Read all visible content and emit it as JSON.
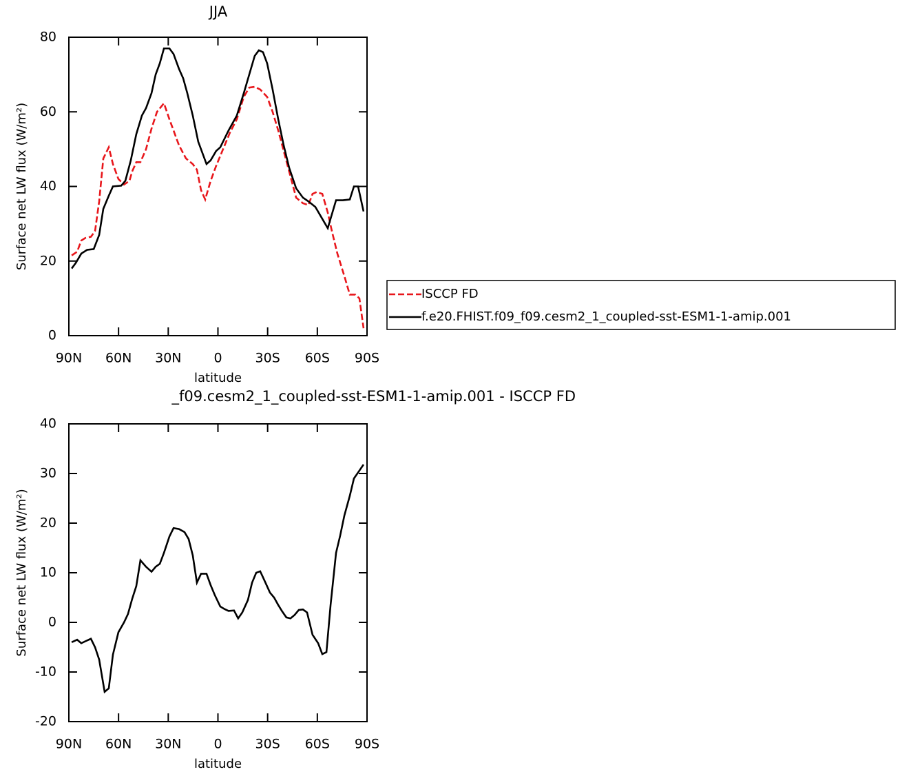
{
  "chart_data": [
    {
      "type": "line",
      "title": "JJA",
      "xlabel": "latitude",
      "ylabel": "Surface net LW flux (W/m²)",
      "xlim": [
        90,
        -90
      ],
      "xticks": [
        {
          "value": 90,
          "label": "90N"
        },
        {
          "value": 60,
          "label": "60N"
        },
        {
          "value": 30,
          "label": "30N"
        },
        0,
        {
          "value": -30,
          "label": "30S"
        },
        {
          "value": -60,
          "label": "60S"
        },
        {
          "value": -90,
          "label": "90S"
        }
      ],
      "ylim": [
        0,
        80
      ],
      "yticks": [
        0,
        20,
        40,
        60,
        80
      ],
      "legend": "right",
      "series": [
        {
          "name": "ISCCP FD",
          "color": "#e8161b",
          "style": "dashed",
          "x": [
            88.3,
            85,
            82.5,
            80,
            76.7,
            74.2,
            71.7,
            69.2,
            65.9,
            63.4,
            60.1,
            56.7,
            53.4,
            51.8,
            49.3,
            46.8,
            43.4,
            40.1,
            36.8,
            32.6,
            29.3,
            26.8,
            23.5,
            19.3,
            15.2,
            12.7,
            10.2,
            7.7,
            4.4,
            1.1,
            -3.1,
            -7.3,
            -11.4,
            -15.6,
            -18.9,
            -22.2,
            -25.5,
            -29.7,
            -33,
            -36.4,
            -39.7,
            -43,
            -47.2,
            -51.3,
            -54.6,
            -57.1,
            -59.6,
            -63,
            -66.3,
            -68.8,
            -72.1,
            -76.3,
            -79.6,
            -82.9,
            -85.4,
            -87.9
          ],
          "values": [
            21.5,
            22.5,
            25.5,
            26.2,
            26.5,
            28,
            36,
            47.5,
            50.5,
            46,
            42,
            40.5,
            41.5,
            44,
            46.5,
            46.5,
            50,
            55.5,
            60,
            62.3,
            58,
            55,
            51,
            47.5,
            46,
            44.5,
            39,
            36.5,
            41.5,
            45.5,
            50,
            54.5,
            58,
            64,
            66.5,
            66.7,
            66,
            64,
            60,
            55,
            49.5,
            44,
            37,
            35.5,
            35,
            38,
            38.5,
            38,
            33,
            28,
            22,
            16,
            11,
            11,
            10,
            2
          ]
        },
        {
          "name": "f.e20.FHIST.f09_f09.cesm2_1_coupled-sst-ESM1-1-amip.001",
          "color": "#000000",
          "style": "solid",
          "x": [
            88.3,
            85.8,
            82.5,
            79,
            75,
            71.7,
            69.2,
            65.9,
            63.4,
            58.4,
            55.9,
            52.6,
            49.3,
            45.9,
            43.4,
            40.1,
            37.6,
            35.1,
            32.6,
            29.3,
            26.8,
            23.5,
            21,
            18.5,
            15.2,
            11.9,
            6.9,
            4.4,
            1.1,
            -1.4,
            -6.4,
            -11.4,
            -15.6,
            -18.9,
            -22.2,
            -24.7,
            -27.2,
            -29.7,
            -33,
            -36.4,
            -39.7,
            -43,
            -47.2,
            -51.3,
            -54.6,
            -58.8,
            -62.1,
            -66.3,
            -71.3,
            -75.4,
            -79.6,
            -82.1,
            -84.6,
            -87.9
          ],
          "values": [
            18,
            19.5,
            22,
            23,
            23.2,
            27,
            34,
            37.5,
            40,
            40.2,
            41.5,
            47,
            54,
            59,
            61,
            65,
            70,
            73,
            77,
            77,
            75.5,
            71.5,
            69,
            65,
            59,
            52,
            46,
            47,
            49.5,
            50.5,
            55,
            59,
            65,
            70,
            75,
            76.5,
            76,
            73,
            66,
            58,
            51,
            45,
            39.5,
            37,
            36,
            34.5,
            32,
            28.8,
            36.3,
            36.3,
            36.5,
            40,
            40,
            33.3
          ]
        }
      ]
    },
    {
      "type": "line",
      "title": "_f09.cesm2_1_coupled-sst-ESM1-1-amip.001 - ISCCP FD",
      "xlabel": "latitude",
      "ylabel": "Surface net LW flux (W/m²)",
      "xlim": [
        90,
        -90
      ],
      "xticks": [
        {
          "value": 90,
          "label": "90N"
        },
        {
          "value": 60,
          "label": "60N"
        },
        {
          "value": 30,
          "label": "30N"
        },
        0,
        {
          "value": -30,
          "label": "30S"
        },
        {
          "value": -60,
          "label": "60S"
        },
        {
          "value": -90,
          "label": "90S"
        }
      ],
      "ylim": [
        -20,
        40
      ],
      "yticks": [
        -20,
        -10,
        0,
        10,
        20,
        30,
        40
      ],
      "series": [
        {
          "color": "#000000",
          "style": "solid",
          "x": [
            88.3,
            85,
            82.5,
            80,
            76.7,
            74.2,
            71.7,
            68.4,
            65.9,
            63.4,
            60.1,
            56.7,
            54.3,
            51.8,
            49.3,
            46.8,
            43.4,
            40.1,
            37.6,
            35.1,
            32.6,
            29.3,
            26.8,
            23.5,
            20.2,
            17.7,
            15.2,
            12.7,
            10.2,
            6.9,
            4.4,
            1.9,
            -1.4,
            -3.9,
            -6.4,
            -9.7,
            -12.2,
            -14.7,
            -18.1,
            -20.6,
            -23.1,
            -25.5,
            -28,
            -31.4,
            -33.9,
            -36.4,
            -38.8,
            -41.3,
            -43.8,
            -46.3,
            -48.8,
            -51.3,
            -53.8,
            -57.1,
            -60.5,
            -63,
            -65.5,
            -68,
            -71.3,
            -73.8,
            -76.3,
            -79.6,
            -82.1,
            -84.6,
            -87.9
          ],
          "values": [
            -4,
            -3.5,
            -4.2,
            -3.8,
            -3.3,
            -5,
            -7.5,
            -14,
            -13.3,
            -6.5,
            -2,
            0,
            1.7,
            4.7,
            7.3,
            12.5,
            11.2,
            10.2,
            11.2,
            11.8,
            14,
            17.3,
            19,
            18.8,
            18.2,
            16.8,
            13.5,
            8,
            9.8,
            9.8,
            7.5,
            5.5,
            3.2,
            2.7,
            2.3,
            2.4,
            0.8,
            2,
            4.5,
            8,
            10,
            10.3,
            8.5,
            6,
            5,
            3.5,
            2.2,
            1,
            0.8,
            1.5,
            2.5,
            2.6,
            2,
            -2.5,
            -4.2,
            -6.4,
            -6,
            3.5,
            14,
            17.5,
            21.5,
            25.5,
            29,
            30.2,
            31.8
          ]
        }
      ]
    }
  ]
}
